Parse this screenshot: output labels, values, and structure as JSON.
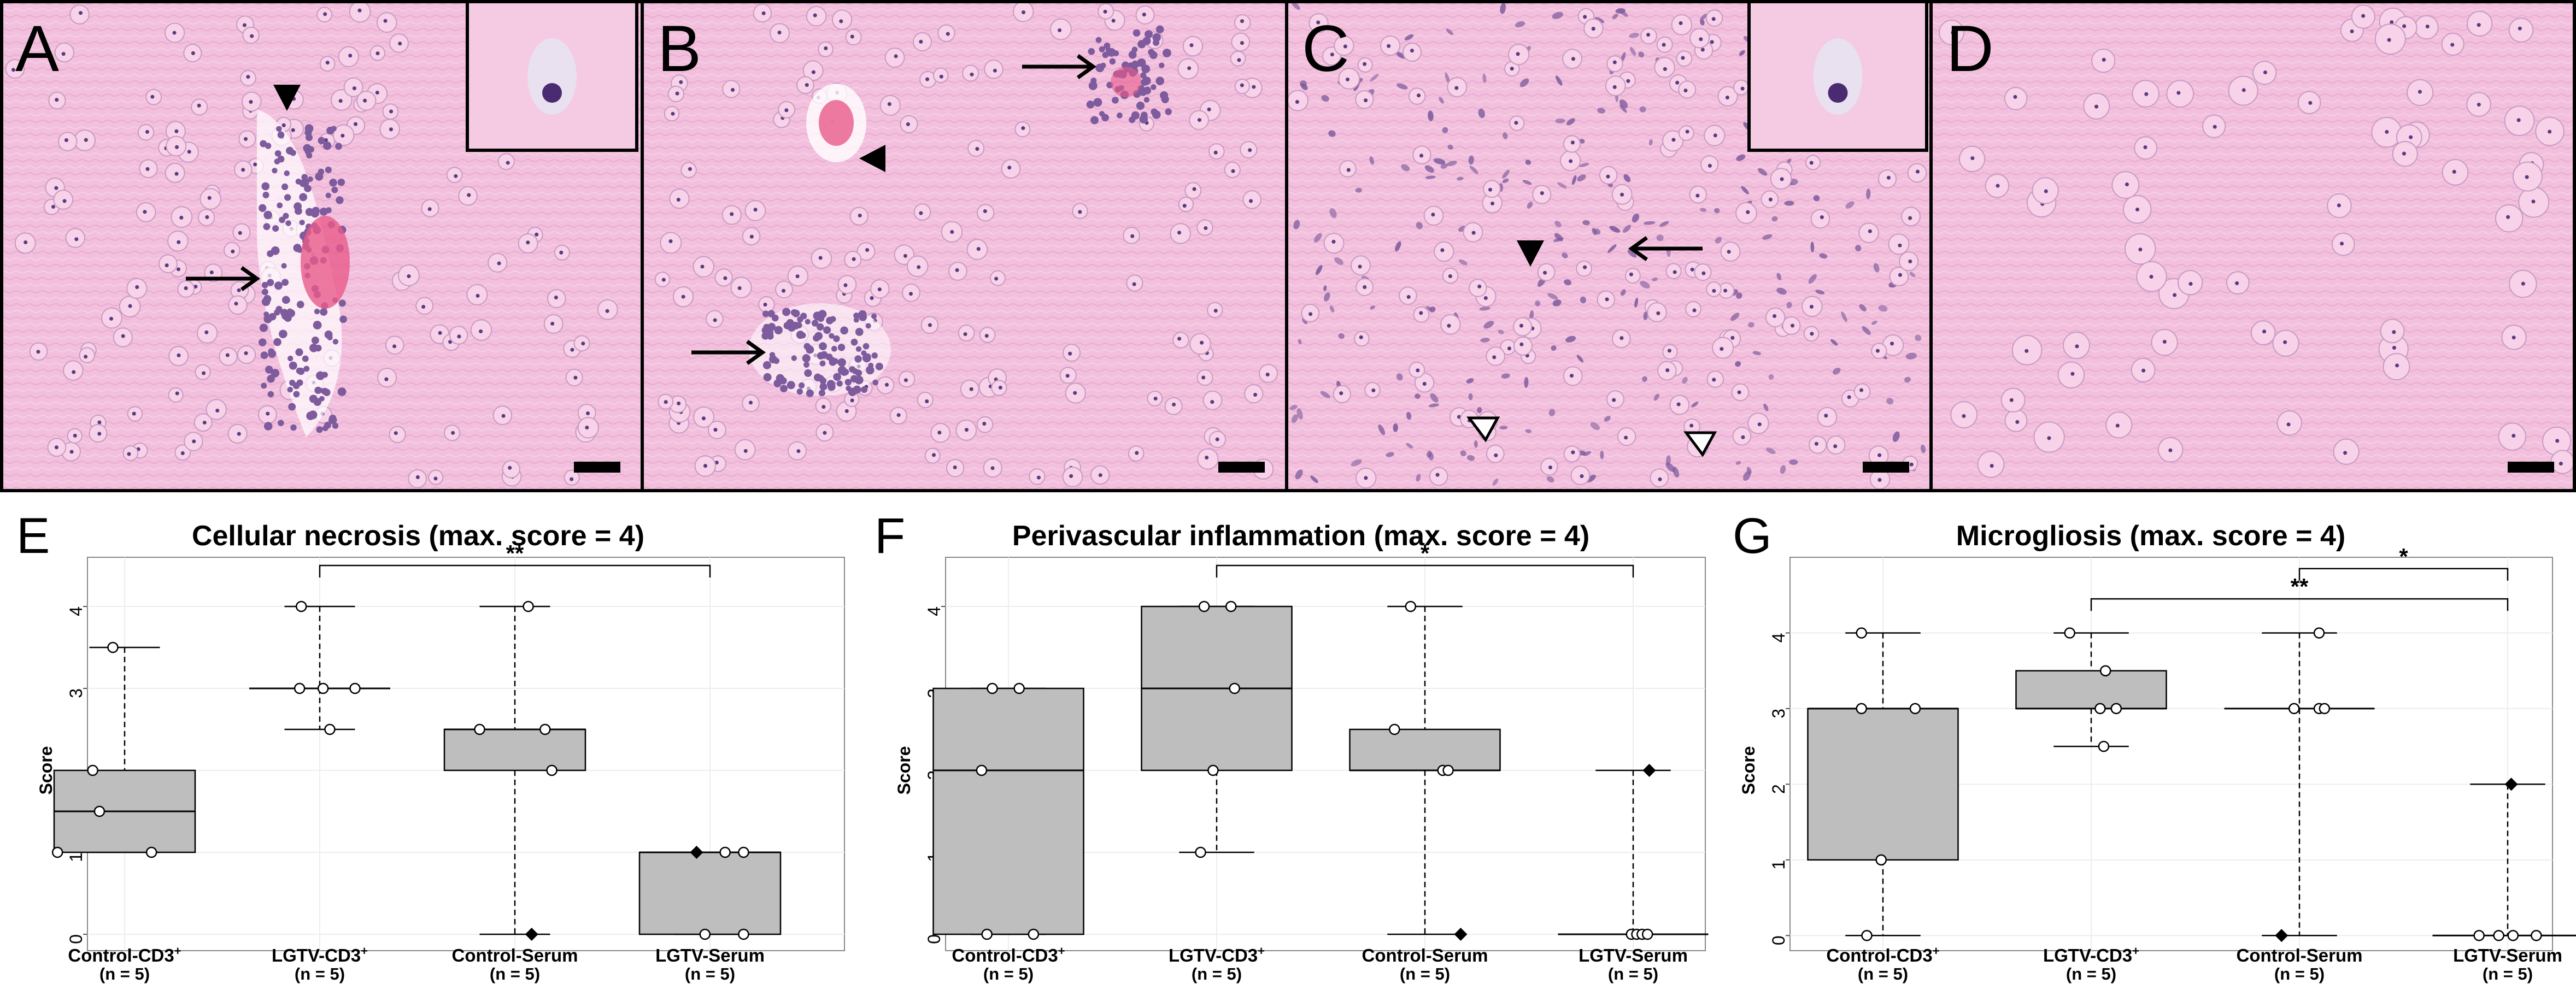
{
  "micrographs": [
    {
      "letter": "A",
      "inset": true,
      "filled_arrowheads": 1,
      "open_arrowheads": 0,
      "arrows": 1
    },
    {
      "letter": "B",
      "inset": false,
      "filled_arrowheads": 1,
      "open_arrowheads": 0,
      "arrows": 2
    },
    {
      "letter": "C",
      "inset": true,
      "filled_arrowheads": 1,
      "open_arrowheads": 2,
      "arrows": 1
    },
    {
      "letter": "D",
      "inset": false,
      "filled_arrowheads": 0,
      "open_arrowheads": 0,
      "arrows": 0
    }
  ],
  "colors": {
    "tissue_background": "#f2c0dd",
    "nuclei": "#7d5b9c",
    "erythrocytes": "#e85a8a",
    "box_fill": "#bebebe",
    "axis": "#888888",
    "text": "#000000"
  },
  "chart_data": [
    {
      "panel_letter": "E",
      "type": "box",
      "title": "Cellular necrosis (max. score = 4)",
      "ylabel": "Score",
      "ylim": [
        -0.2,
        4.6
      ],
      "yticks": [
        0,
        1,
        2,
        3,
        4
      ],
      "grid": true,
      "categories": [
        {
          "name": "Control-CD3",
          "sup": "+",
          "n": "(n = 5)"
        },
        {
          "name": "LGTV-CD3",
          "sup": "+",
          "n": "(n = 5)"
        },
        {
          "name": "Control-Serum",
          "sup": "",
          "n": "(n = 5)"
        },
        {
          "name": "LGTV-Serum",
          "sup": "",
          "n": "(n = 5)"
        }
      ],
      "boxes": [
        {
          "min": 1,
          "q1": 1,
          "median": 1.5,
          "q3": 2,
          "max": 3.5
        },
        {
          "min": 2.5,
          "q1": 3,
          "median": 3,
          "q3": 3,
          "max": 4
        },
        {
          "min": 0,
          "q1": 2,
          "median": 2.5,
          "q3": 2.5,
          "max": 4
        },
        {
          "min": 0,
          "q1": 0,
          "median": 1,
          "q3": 1,
          "max": 1
        }
      ],
      "points": [
        [
          {
            "v": 3.5,
            "dx": -0.35
          },
          {
            "v": 2,
            "dx": -0.95
          },
          {
            "v": 1.5,
            "dx": -0.75
          },
          {
            "v": 1,
            "dx": -2.0
          },
          {
            "v": 1,
            "dx": 0.8
          }
        ],
        [
          {
            "v": 4,
            "dx": -0.55
          },
          {
            "v": 3,
            "dx": -0.6
          },
          {
            "v": 3,
            "dx": 0.1
          },
          {
            "v": 3,
            "dx": 1.05
          },
          {
            "v": 2.5,
            "dx": 0.3
          }
        ],
        [
          {
            "v": 4,
            "dx": 0.4
          },
          {
            "v": 2.5,
            "dx": -1.05
          },
          {
            "v": 2.5,
            "dx": 0.9
          },
          {
            "v": 2,
            "dx": 1.1
          },
          {
            "v": 0,
            "dx": 0.5,
            "filled": true
          }
        ],
        [
          {
            "v": 1,
            "dx": -0.4,
            "filled": true
          },
          {
            "v": 1,
            "dx": 0.45
          },
          {
            "v": 1,
            "dx": 1.0
          },
          {
            "v": 0,
            "dx": -0.15
          },
          {
            "v": 0,
            "dx": 1.0
          }
        ]
      ],
      "significance": [
        {
          "from": 1,
          "to": 3,
          "y": 4.5,
          "label": "**"
        }
      ]
    },
    {
      "panel_letter": "F",
      "type": "box",
      "title": "Perivascular inflammation (max. score = 4)",
      "ylabel": "Score",
      "ylim": [
        -0.2,
        4.6
      ],
      "yticks": [
        0,
        1,
        2,
        3,
        4
      ],
      "grid": true,
      "categories": [
        {
          "name": "Control-CD3",
          "sup": "+",
          "n": "(n = 5)"
        },
        {
          "name": "LGTV-CD3",
          "sup": "+",
          "n": "(n = 5)"
        },
        {
          "name": "Control-Serum",
          "sup": "",
          "n": "(n = 5)"
        },
        {
          "name": "LGTV-Serum",
          "sup": "",
          "n": "(n = 5)"
        }
      ],
      "boxes": [
        {
          "min": 0,
          "q1": 0,
          "median": 2,
          "q3": 3,
          "max": 3
        },
        {
          "min": 1,
          "q1": 2,
          "median": 3,
          "q3": 4,
          "max": 4
        },
        {
          "min": 0,
          "q1": 2,
          "median": 2,
          "q3": 2.5,
          "max": 4
        },
        {
          "min": 0,
          "q1": 0,
          "median": 0,
          "q3": 0,
          "max": 2
        }
      ],
      "points": [
        [
          {
            "v": 3,
            "dx": -0.45
          },
          {
            "v": 3,
            "dx": 0.3
          },
          {
            "v": 2,
            "dx": -0.75
          },
          {
            "v": 0,
            "dx": -0.6
          },
          {
            "v": 0,
            "dx": 0.7
          }
        ],
        [
          {
            "v": 4,
            "dx": -0.35
          },
          {
            "v": 4,
            "dx": 0.4
          },
          {
            "v": 3,
            "dx": 0.5
          },
          {
            "v": 2,
            "dx": -0.1
          },
          {
            "v": 1,
            "dx": -0.45
          }
        ],
        [
          {
            "v": 4,
            "dx": -0.4
          },
          {
            "v": 2.5,
            "dx": -0.85
          },
          {
            "v": 2,
            "dx": 0.5
          },
          {
            "v": 2,
            "dx": 0.65
          },
          {
            "v": 0,
            "dx": 1.0,
            "filled": true
          }
        ],
        [
          {
            "v": 2,
            "dx": 0.45,
            "filled": true
          },
          {
            "v": 0,
            "dx": -0.05
          },
          {
            "v": 0,
            "dx": 0.1
          },
          {
            "v": 0,
            "dx": 0.25
          },
          {
            "v": 0,
            "dx": 0.4
          }
        ]
      ],
      "significance": [
        {
          "from": 1,
          "to": 3,
          "y": 4.5,
          "label": "*"
        }
      ]
    },
    {
      "panel_letter": "G",
      "type": "box",
      "title": "Microgliosis (max. score = 4)",
      "ylabel": "Score",
      "ylim": [
        -0.2,
        5.0
      ],
      "yticks": [
        0,
        1,
        2,
        3,
        4
      ],
      "grid": true,
      "categories": [
        {
          "name": "Control-CD3",
          "sup": "+",
          "n": "(n = 5)"
        },
        {
          "name": "LGTV-CD3",
          "sup": "+",
          "n": "(n = 5)"
        },
        {
          "name": "Control-Serum",
          "sup": "",
          "n": "(n = 5)"
        },
        {
          "name": "LGTV-Serum",
          "sup": "",
          "n": "(n = 5)"
        }
      ],
      "boxes": [
        {
          "min": 0,
          "q1": 1,
          "median": 3,
          "q3": 3,
          "max": 4
        },
        {
          "min": 2.5,
          "q1": 3,
          "median": 3,
          "q3": 3.5,
          "max": 4
        },
        {
          "min": 0,
          "q1": 3,
          "median": 3,
          "q3": 3,
          "max": 4
        },
        {
          "min": 0,
          "q1": 0,
          "median": 0,
          "q3": 0,
          "max": 2
        }
      ],
      "points": [
        [
          {
            "v": 4,
            "dx": -0.6
          },
          {
            "v": 3,
            "dx": -0.6
          },
          {
            "v": 3,
            "dx": 0.9
          },
          {
            "v": 1,
            "dx": -0.05
          },
          {
            "v": 0,
            "dx": -0.45
          }
        ],
        [
          {
            "v": 4,
            "dx": -0.6
          },
          {
            "v": 3.5,
            "dx": 0.4
          },
          {
            "v": 3,
            "dx": 0.25
          },
          {
            "v": 3,
            "dx": 0.7
          },
          {
            "v": 2.5,
            "dx": 0.35
          }
        ],
        [
          {
            "v": 4,
            "dx": 0.55
          },
          {
            "v": 3,
            "dx": -0.15
          },
          {
            "v": 3,
            "dx": 0.55
          },
          {
            "v": 3,
            "dx": 0.7
          },
          {
            "v": 0,
            "dx": -0.5,
            "filled": true
          }
        ],
        [
          {
            "v": 2,
            "dx": 0.1,
            "filled": true
          },
          {
            "v": 0,
            "dx": -0.8
          },
          {
            "v": 0,
            "dx": -0.25
          },
          {
            "v": 0,
            "dx": 0.15
          },
          {
            "v": 0,
            "dx": 0.8
          }
        ]
      ],
      "significance": [
        {
          "from": 2,
          "to": 3,
          "y": 4.85,
          "label": "*"
        },
        {
          "from": 1,
          "to": 3,
          "y": 4.45,
          "label": "**"
        }
      ]
    }
  ]
}
